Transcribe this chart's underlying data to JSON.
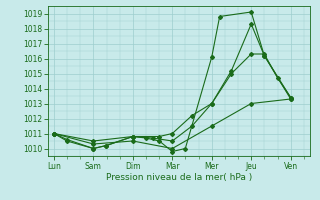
{
  "background_color": "#c8eaea",
  "grid_color": "#9ecece",
  "line_color": "#1a6b1a",
  "x_labels": [
    "Lun",
    "Sam",
    "Dim",
    "Mar",
    "Mer",
    "Jeu",
    "Ven"
  ],
  "xlabel": "Pression niveau de la mer( hPa )",
  "ylim": [
    1009.5,
    1019.5
  ],
  "yticks": [
    1010,
    1011,
    1012,
    1013,
    1014,
    1015,
    1016,
    1017,
    1018,
    1019
  ],
  "figwidth": 3.2,
  "figheight": 2.0,
  "dpi": 100,
  "line1_x": [
    0.0,
    0.33,
    1.0,
    1.33,
    2.0,
    2.33,
    2.67,
    3.0,
    3.33,
    4.0,
    4.2,
    5.0,
    5.33,
    6.0
  ],
  "line1_y": [
    1011.0,
    1010.6,
    1010.0,
    1010.2,
    1010.8,
    1010.7,
    1010.5,
    1009.8,
    1010.0,
    1016.1,
    1018.8,
    1019.1,
    1016.2,
    1013.3
  ],
  "line2_x": [
    0.0,
    0.33,
    1.0,
    1.33,
    2.0,
    2.5,
    3.0,
    3.5,
    4.0,
    4.5,
    5.0,
    5.33,
    6.0
  ],
  "line2_y": [
    1011.0,
    1010.5,
    1010.0,
    1010.2,
    1010.8,
    1010.7,
    1010.5,
    1011.5,
    1013.0,
    1015.2,
    1018.3,
    1016.2,
    1013.4
  ],
  "line3_x": [
    0.0,
    1.0,
    2.0,
    2.67,
    3.0,
    3.5,
    4.0,
    4.5,
    5.0,
    5.33,
    5.67,
    6.0
  ],
  "line3_y": [
    1011.0,
    1010.5,
    1010.8,
    1010.8,
    1011.0,
    1012.2,
    1013.0,
    1015.0,
    1016.3,
    1016.3,
    1014.7,
    1013.4
  ],
  "line4_x": [
    0.0,
    1.0,
    2.0,
    3.0,
    4.0,
    5.0,
    6.0
  ],
  "line4_y": [
    1011.0,
    1010.3,
    1010.5,
    1010.0,
    1011.5,
    1013.0,
    1013.3
  ]
}
